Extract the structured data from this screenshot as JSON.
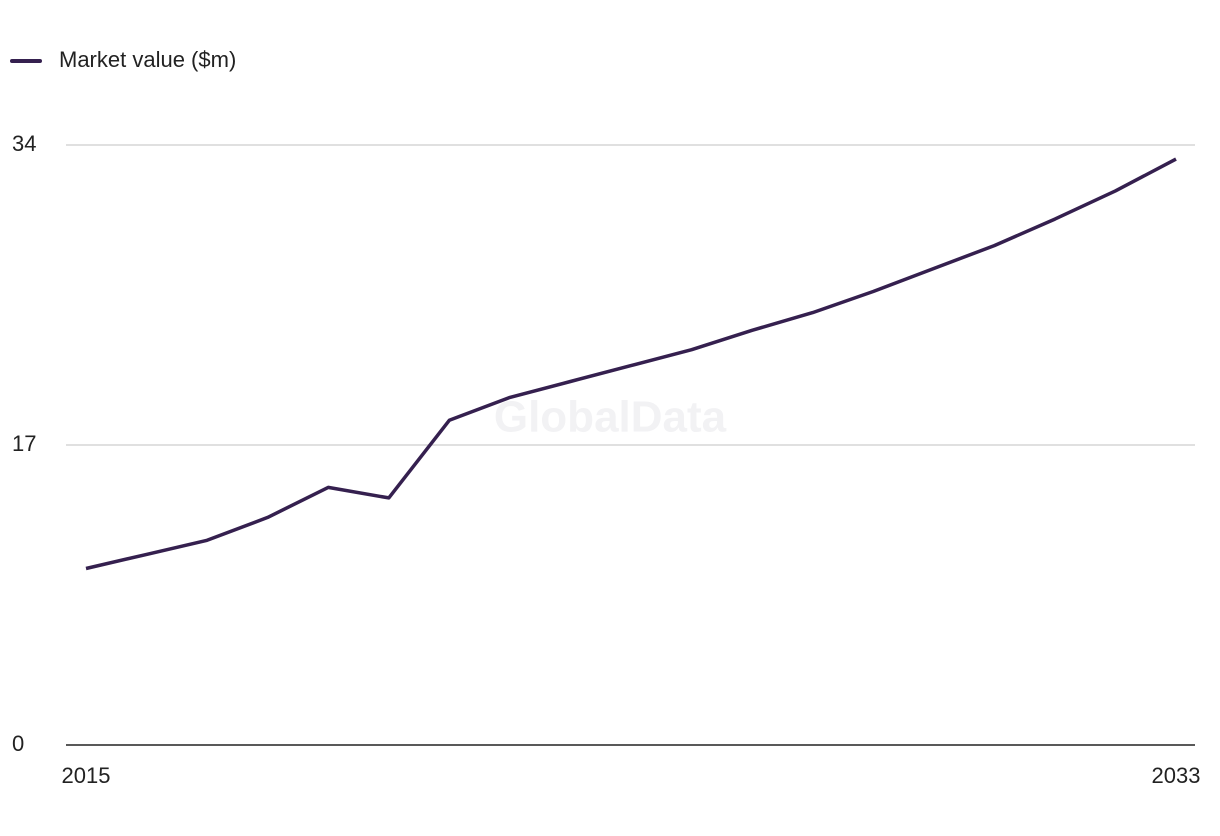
{
  "chart_data": {
    "type": "line",
    "watermark": "GlobalData",
    "categories": [
      "2015",
      null,
      null,
      null,
      null,
      null,
      null,
      null,
      null,
      null,
      null,
      null,
      null,
      null,
      null,
      null,
      null,
      null,
      "2033"
    ],
    "series": [
      {
        "name": "Market value ($m)",
        "color": "#35204f",
        "values": [
          10.0,
          10.8,
          11.6,
          12.9,
          14.6,
          14.0,
          18.4,
          19.7,
          20.6,
          21.5,
          22.4,
          23.5,
          24.5,
          25.7,
          27.0,
          28.3,
          29.8,
          31.4,
          33.2
        ]
      }
    ],
    "ylim": [
      0,
      34
    ],
    "yticks": [
      0,
      17,
      34
    ],
    "grid": true,
    "legend": "top-left"
  }
}
